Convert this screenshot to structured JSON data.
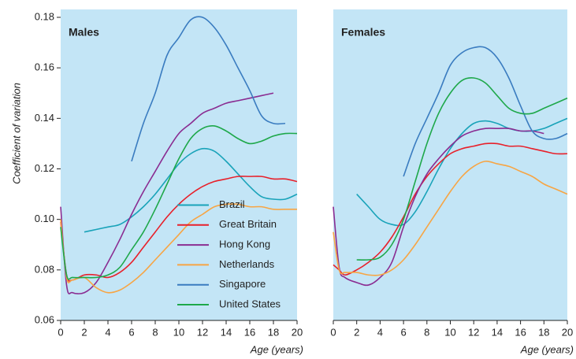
{
  "chart_data": [
    {
      "type": "line",
      "title": "Males",
      "x_label": "Age (years)",
      "y_label": "Coefficient of variation",
      "x": [
        0,
        0.5,
        1,
        2,
        3,
        4,
        5,
        6,
        7,
        8,
        9,
        10,
        11,
        12,
        13,
        14,
        15,
        16,
        17,
        18,
        19,
        20
      ],
      "xlim": [
        0,
        20
      ],
      "xticks": [
        0,
        2,
        4,
        6,
        8,
        10,
        12,
        14,
        16,
        18,
        20
      ],
      "ylim": [
        0.06,
        0.18
      ],
      "yticks": [
        0.06,
        0.08,
        {
          "value": 0.1,
          "label": "0.10"
        },
        0.12,
        0.14,
        0.16,
        0.18
      ],
      "legend": "lower right",
      "series": [
        {
          "name": "Brazil",
          "color": "#19a3b9",
          "values": [
            null,
            null,
            null,
            0.095,
            0.096,
            0.097,
            0.098,
            0.101,
            0.105,
            0.11,
            0.116,
            0.122,
            0.126,
            0.128,
            0.127,
            0.123,
            0.118,
            0.113,
            0.109,
            0.108,
            0.108,
            0.11
          ]
        },
        {
          "name": "Great Britain",
          "color": "#e8202a",
          "values": [
            0.099,
            0.078,
            0.076,
            0.078,
            0.078,
            0.077,
            0.079,
            0.083,
            0.089,
            0.095,
            0.101,
            0.106,
            0.11,
            0.113,
            0.115,
            0.116,
            0.117,
            0.117,
            0.117,
            0.116,
            0.116,
            0.115
          ]
        },
        {
          "name": "Hong Kong",
          "color": "#8a2c91",
          "values": [
            0.105,
            0.074,
            0.071,
            0.071,
            0.075,
            0.083,
            0.092,
            0.102,
            0.111,
            0.119,
            0.127,
            0.134,
            0.138,
            0.142,
            0.144,
            0.146,
            0.147,
            0.148,
            0.149,
            0.15,
            null,
            null
          ]
        },
        {
          "name": "Netherlands",
          "color": "#f7a544",
          "values": [
            0.1,
            0.077,
            0.076,
            0.077,
            0.073,
            0.071,
            0.072,
            0.075,
            0.079,
            0.084,
            0.089,
            0.094,
            0.099,
            0.102,
            0.105,
            0.106,
            0.106,
            0.105,
            0.105,
            0.104,
            0.104,
            0.104
          ]
        },
        {
          "name": "Singapore",
          "color": "#3a7cc0",
          "values": [
            null,
            null,
            null,
            null,
            null,
            null,
            null,
            0.123,
            0.138,
            0.15,
            0.165,
            0.172,
            0.179,
            0.18,
            0.176,
            0.169,
            0.16,
            0.151,
            0.141,
            0.138,
            0.138,
            null
          ]
        },
        {
          "name": "United States",
          "color": "#1ea84a",
          "values": [
            0.097,
            0.078,
            0.077,
            0.077,
            0.077,
            0.078,
            0.081,
            0.088,
            0.095,
            0.104,
            0.114,
            0.124,
            0.132,
            0.136,
            0.137,
            0.135,
            0.132,
            0.13,
            0.131,
            0.133,
            0.134,
            0.134
          ]
        }
      ]
    },
    {
      "type": "line",
      "title": "Females",
      "x_label": "Age (years)",
      "x": [
        0,
        0.5,
        1,
        2,
        3,
        4,
        5,
        6,
        7,
        8,
        9,
        10,
        11,
        12,
        13,
        14,
        15,
        16,
        17,
        18,
        19,
        20
      ],
      "xlim": [
        0,
        20
      ],
      "xticks": [
        0,
        2,
        4,
        6,
        8,
        10,
        12,
        14,
        16,
        18,
        20
      ],
      "ylim": [
        0.06,
        0.18
      ],
      "series": [
        {
          "name": "Brazil",
          "color": "#19a3b9",
          "values": [
            null,
            null,
            null,
            0.11,
            0.105,
            0.1,
            0.098,
            0.098,
            0.103,
            0.111,
            0.12,
            0.128,
            0.134,
            0.138,
            0.139,
            0.138,
            0.136,
            0.135,
            0.135,
            0.136,
            0.138,
            0.14
          ]
        },
        {
          "name": "Great Britain",
          "color": "#e8202a",
          "values": [
            0.082,
            0.08,
            0.078,
            0.08,
            0.083,
            0.087,
            0.093,
            0.101,
            0.11,
            0.117,
            0.122,
            0.126,
            0.128,
            0.129,
            0.13,
            0.13,
            0.129,
            0.129,
            0.128,
            0.127,
            0.126,
            0.126
          ]
        },
        {
          "name": "Hong Kong",
          "color": "#8a2c91",
          "values": [
            0.105,
            0.081,
            0.077,
            0.075,
            0.074,
            0.077,
            0.083,
            0.097,
            0.109,
            0.118,
            0.124,
            0.129,
            0.133,
            0.135,
            0.136,
            0.136,
            0.136,
            0.135,
            0.135,
            0.134,
            null,
            null
          ]
        },
        {
          "name": "Netherlands",
          "color": "#f7a544",
          "values": [
            0.095,
            0.08,
            0.079,
            0.079,
            0.078,
            0.078,
            0.08,
            0.084,
            0.09,
            0.097,
            0.104,
            0.111,
            0.117,
            0.121,
            0.123,
            0.122,
            0.121,
            0.119,
            0.117,
            0.114,
            0.112,
            0.11
          ]
        },
        {
          "name": "Singapore",
          "color": "#3a7cc0",
          "values": [
            null,
            null,
            null,
            null,
            null,
            null,
            null,
            0.117,
            0.13,
            0.14,
            0.15,
            0.161,
            0.166,
            0.168,
            0.168,
            0.164,
            0.156,
            0.145,
            0.135,
            0.132,
            0.132,
            0.134
          ]
        },
        {
          "name": "United States",
          "color": "#1ea84a",
          "values": [
            null,
            null,
            null,
            0.084,
            0.084,
            0.085,
            0.09,
            0.1,
            0.115,
            0.13,
            0.142,
            0.15,
            0.155,
            0.156,
            0.154,
            0.149,
            0.144,
            0.142,
            0.142,
            0.144,
            0.146,
            0.148
          ]
        }
      ]
    }
  ]
}
